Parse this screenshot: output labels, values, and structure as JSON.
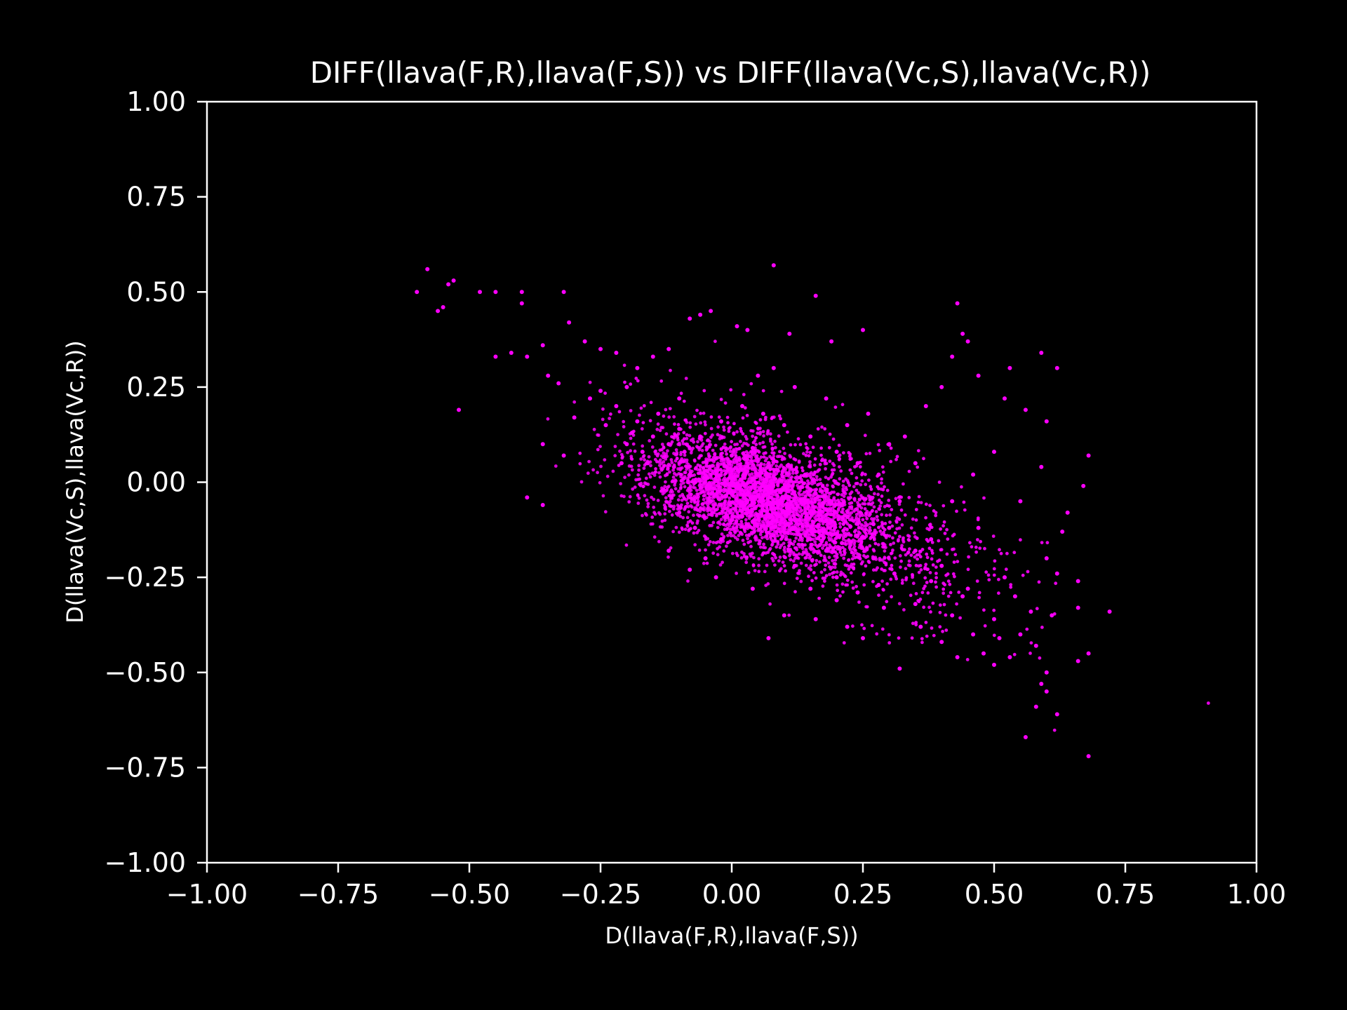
{
  "chart_data": {
    "type": "scatter",
    "title": "DIFF(llava(F,R),llava(F,S)) vs DIFF(llava(Vc,S),llava(Vc,R))",
    "xlabel": "D(llava(F,R),llava(F,S))",
    "ylabel": "D(llava(Vc,S),llava(Vc,R))",
    "xlim": [
      -1.0,
      1.0
    ],
    "ylim": [
      -1.0,
      1.0
    ],
    "xticks": [
      "−1.00",
      "−0.75",
      "−0.50",
      "−0.25",
      "0.00",
      "0.25",
      "0.50",
      "0.75",
      "1.00"
    ],
    "yticks": [
      "−1.00",
      "−0.75",
      "−0.50",
      "−0.25",
      "0.00",
      "0.25",
      "0.50",
      "0.75",
      "1.00"
    ],
    "grid": false,
    "legend": "none",
    "colors": {
      "background": "#000000",
      "foreground": "#ffffff",
      "points": "#ff00ff"
    },
    "series": [
      {
        "name": "",
        "color": "#ff00ff",
        "points": [
          [
            -0.58,
            0.56
          ],
          [
            -0.6,
            0.5
          ],
          [
            -0.56,
            0.45
          ],
          [
            -0.55,
            0.46
          ],
          [
            -0.54,
            0.52
          ],
          [
            -0.53,
            0.53
          ],
          [
            -0.52,
            0.19
          ],
          [
            -0.48,
            0.5
          ],
          [
            -0.45,
            0.5
          ],
          [
            -0.4,
            0.47
          ],
          [
            -0.4,
            0.5
          ],
          [
            -0.32,
            0.5
          ],
          [
            -0.45,
            0.33
          ],
          [
            -0.42,
            0.34
          ],
          [
            -0.39,
            0.33
          ],
          [
            -0.36,
            0.36
          ],
          [
            -0.35,
            0.28
          ],
          [
            -0.33,
            0.26
          ],
          [
            -0.31,
            0.42
          ],
          [
            -0.28,
            0.37
          ],
          [
            -0.25,
            0.35
          ],
          [
            -0.22,
            0.34
          ],
          [
            -0.36,
            0.1
          ],
          [
            -0.39,
            -0.04
          ],
          [
            -0.36,
            -0.06
          ],
          [
            -0.32,
            0.07
          ],
          [
            -0.3,
            0.17
          ],
          [
            -0.27,
            0.22
          ],
          [
            -0.25,
            0.24
          ],
          [
            -0.24,
            0.15
          ],
          [
            -0.22,
            0.2
          ],
          [
            -0.2,
            0.25
          ],
          [
            -0.18,
            0.3
          ],
          [
            -0.15,
            0.33
          ],
          [
            -0.12,
            0.35
          ],
          [
            -0.08,
            0.43
          ],
          [
            -0.06,
            0.44
          ],
          [
            -0.04,
            0.45
          ],
          [
            0.08,
            0.57
          ],
          [
            0.16,
            0.49
          ],
          [
            0.01,
            0.41
          ],
          [
            0.03,
            0.4
          ],
          [
            0.11,
            0.39
          ],
          [
            0.19,
            0.37
          ],
          [
            0.25,
            0.4
          ],
          [
            0.43,
            0.47
          ],
          [
            0.44,
            0.39
          ],
          [
            0.45,
            0.37
          ],
          [
            0.42,
            0.33
          ],
          [
            0.47,
            0.28
          ],
          [
            0.53,
            0.3
          ],
          [
            0.59,
            0.34
          ],
          [
            0.62,
            0.3
          ],
          [
            0.52,
            0.22
          ],
          [
            0.56,
            0.19
          ],
          [
            0.6,
            0.16
          ],
          [
            0.5,
            0.08
          ],
          [
            0.59,
            0.04
          ],
          [
            0.68,
            0.07
          ],
          [
            0.67,
            -0.01
          ],
          [
            0.64,
            -0.08
          ],
          [
            0.63,
            -0.13
          ],
          [
            0.6,
            -0.2
          ],
          [
            0.62,
            -0.24
          ],
          [
            0.66,
            -0.26
          ],
          [
            0.72,
            -0.34
          ],
          [
            0.66,
            -0.33
          ],
          [
            0.61,
            -0.35
          ],
          [
            0.58,
            -0.43
          ],
          [
            0.66,
            -0.47
          ],
          [
            0.68,
            -0.45
          ],
          [
            0.6,
            -0.5
          ],
          [
            0.59,
            -0.53
          ],
          [
            0.6,
            -0.55
          ],
          [
            0.58,
            -0.59
          ],
          [
            0.62,
            -0.61
          ],
          [
            0.56,
            -0.67
          ],
          [
            0.68,
            -0.72
          ],
          [
            0.32,
            -0.49
          ],
          [
            0.25,
            -0.41
          ],
          [
            0.22,
            -0.38
          ],
          [
            0.1,
            -0.35
          ],
          [
            0.07,
            -0.41
          ],
          [
            0.16,
            -0.36
          ],
          [
            0.2,
            -0.31
          ],
          [
            0.28,
            -0.27
          ],
          [
            0.35,
            -0.32
          ],
          [
            0.42,
            -0.35
          ],
          [
            0.48,
            -0.45
          ],
          [
            0.5,
            -0.48
          ],
          [
            0.53,
            -0.46
          ],
          [
            0.55,
            -0.4
          ],
          [
            0.45,
            -0.28
          ],
          [
            0.4,
            -0.22
          ],
          [
            0.38,
            -0.15
          ],
          [
            0.42,
            -0.05
          ],
          [
            0.46,
            0.02
          ],
          [
            0.35,
            0.05
          ],
          [
            0.3,
            0.1
          ],
          [
            0.26,
            0.18
          ],
          [
            0.22,
            0.15
          ],
          [
            0.18,
            0.22
          ],
          [
            0.12,
            0.25
          ],
          [
            0.08,
            0.3
          ],
          [
            0.05,
            0.28
          ],
          [
            -0.1,
            0.22
          ],
          [
            -0.14,
            0.18
          ],
          [
            -0.18,
            0.16
          ],
          [
            -0.2,
            0.1
          ],
          [
            -0.21,
            0.05
          ],
          [
            -0.16,
            0.05
          ],
          [
            -0.13,
            -0.02
          ],
          [
            -0.1,
            -0.08
          ],
          [
            -0.07,
            -0.12
          ],
          [
            -0.05,
            -0.2
          ],
          [
            -0.02,
            -0.15
          ],
          [
            0.0,
            -0.1
          ],
          [
            -0.08,
            -0.23
          ],
          [
            -0.12,
            -0.18
          ],
          [
            -0.03,
            -0.25
          ],
          [
            0.04,
            -0.28
          ],
          [
            0.12,
            -0.22
          ],
          [
            0.15,
            -0.28
          ],
          [
            0.2,
            -0.25
          ],
          [
            0.27,
            -0.2
          ],
          [
            0.3,
            -0.12
          ],
          [
            0.32,
            -0.05
          ],
          [
            0.28,
            0.02
          ],
          [
            0.24,
            0.05
          ],
          [
            0.2,
            0.08
          ],
          [
            0.15,
            0.12
          ],
          [
            0.1,
            0.15
          ],
          [
            0.06,
            0.18
          ],
          [
            0.02,
            0.2
          ],
          [
            -0.02,
            0.16
          ],
          [
            -0.06,
            0.12
          ],
          [
            -0.09,
            0.08
          ],
          [
            -0.11,
            0.04
          ],
          [
            -0.07,
            0.0
          ],
          [
            -0.03,
            0.03
          ],
          [
            0.0,
            0.0
          ],
          [
            0.03,
            -0.03
          ],
          [
            0.06,
            -0.06
          ],
          [
            0.09,
            -0.09
          ],
          [
            0.12,
            -0.12
          ],
          [
            0.15,
            -0.15
          ],
          [
            0.18,
            -0.18
          ],
          [
            0.21,
            -0.16
          ],
          [
            0.24,
            -0.14
          ],
          [
            0.27,
            -0.11
          ],
          [
            0.1,
            -0.04
          ],
          [
            0.05,
            0.02
          ],
          [
            0.14,
            -0.08
          ],
          [
            0.18,
            -0.1
          ],
          [
            0.22,
            -0.09
          ],
          [
            0.08,
            -0.14
          ],
          [
            0.02,
            -0.09
          ],
          [
            -0.04,
            -0.05
          ],
          [
            0.0,
            0.07
          ],
          [
            0.04,
            0.09
          ],
          [
            0.35,
            -0.18
          ],
          [
            0.38,
            -0.26
          ],
          [
            0.44,
            -0.3
          ],
          [
            0.5,
            -0.36
          ],
          [
            0.52,
            -0.25
          ],
          [
            0.47,
            -0.12
          ],
          [
            0.55,
            -0.05
          ],
          [
            0.33,
            0.12
          ],
          [
            0.37,
            0.2
          ],
          [
            0.4,
            0.25
          ],
          [
            -0.15,
            0.12
          ],
          [
            -0.12,
            0.1
          ],
          [
            -0.17,
            0.08
          ],
          [
            -0.19,
            0.13
          ],
          [
            -0.1,
            0.14
          ],
          [
            0.14,
            0.02
          ],
          [
            0.16,
            -0.03
          ],
          [
            0.19,
            -0.05
          ],
          [
            0.11,
            -0.01
          ],
          [
            0.07,
            0.04
          ],
          [
            0.29,
            -0.33
          ],
          [
            0.24,
            -0.29
          ],
          [
            0.31,
            -0.24
          ],
          [
            0.36,
            -0.38
          ],
          [
            0.4,
            -0.42
          ],
          [
            0.46,
            -0.4
          ],
          [
            0.43,
            -0.46
          ],
          [
            0.51,
            -0.41
          ],
          [
            0.57,
            -0.34
          ],
          [
            0.54,
            -0.3
          ]
        ]
      }
    ]
  }
}
